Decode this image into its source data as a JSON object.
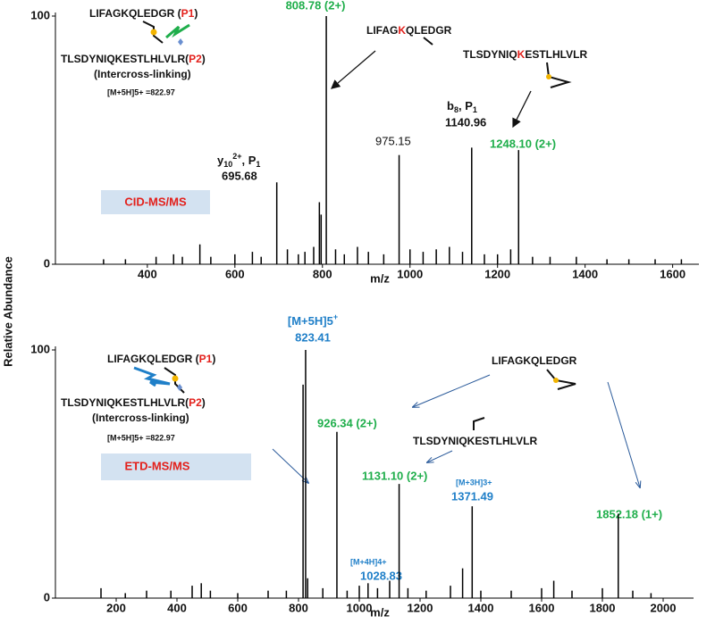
{
  "y_label": "Relative Abundance",
  "chart_data": [
    {
      "type": "spectrum",
      "color": "#000000",
      "xlabel": "m/z",
      "method": "CID-MS/MS",
      "xlim": [
        190,
        1660
      ],
      "xticks": [
        400,
        600,
        800,
        1000,
        1200,
        1400,
        1600
      ],
      "ylim": [
        0,
        100
      ],
      "yticks": [
        0,
        100
      ],
      "x": [
        300,
        350,
        420,
        460,
        480,
        520,
        545,
        600,
        640,
        660,
        695.68,
        720,
        745,
        760,
        780,
        793,
        797,
        808.78,
        830,
        850,
        880,
        905,
        940,
        975.15,
        1000,
        1030,
        1060,
        1090,
        1120,
        1140.96,
        1170,
        1200,
        1230,
        1248.1,
        1280,
        1320,
        1380,
        1450,
        1500,
        1560,
        1620
      ],
      "values": [
        2,
        2,
        3,
        4,
        3,
        8,
        3,
        4,
        5,
        3,
        33,
        6,
        4,
        5,
        7,
        25,
        20,
        100,
        6,
        4,
        7,
        5,
        4,
        44,
        6,
        5,
        6,
        7,
        5,
        47,
        4,
        4,
        6,
        46,
        3,
        3,
        3,
        2,
        2,
        2,
        2
      ],
      "annotations": {
        "seq1": "LIFAGKQLEDGR (",
        "tag1": "P1",
        "end1": ")",
        "seq2": "TLSDYNIQKESTLHLVLR(",
        "tag2": "P2",
        "end2": ")",
        "mode": "(Intercross-linking)",
        "precursor": "[M+5H]5+ =822.97",
        "frag1_a": "LIFAG",
        "frag1_k": "K",
        "frag1_b": "QLEDGR",
        "frag2_a": "TLSDYNIQ",
        "frag2_k": "K",
        "frag2_b": "ESTLHLVLR",
        "b_ion": "b",
        "b_sub": "8",
        "b_p": ", P",
        "b_psub": "1",
        "b_mz": "1140.96",
        "y_ion": "y",
        "y_sub": "10",
        "y_sup": "2+",
        "y_p": ", P",
        "y_psub": "1",
        "y_mz": "695.68",
        "peak975": "975.15",
        "peak808": "808.78 (2+)",
        "peak1248": "1248.10 (2+)"
      }
    },
    {
      "type": "spectrum",
      "color": "#000000",
      "xlabel": "m/z",
      "method": "ETD-MS/MS",
      "xlim": [
        0,
        2100
      ],
      "xticks": [
        200,
        400,
        600,
        800,
        1000,
        1200,
        1400,
        1600,
        1800,
        2000
      ],
      "ylim": [
        0,
        100
      ],
      "yticks": [
        0,
        100
      ],
      "x": [
        150,
        230,
        300,
        380,
        450,
        480,
        510,
        600,
        700,
        760,
        815,
        823.41,
        830,
        880,
        926.34,
        960,
        1000,
        1028.83,
        1060,
        1100,
        1131.1,
        1160,
        1220,
        1300,
        1340,
        1371.49,
        1400,
        1500,
        1600,
        1640,
        1700,
        1800,
        1852.18,
        1900,
        1960
      ],
      "values": [
        4,
        2,
        3,
        3,
        5,
        6,
        3,
        2,
        3,
        3,
        86,
        100,
        8,
        4,
        67,
        3,
        5,
        6,
        4,
        7,
        46,
        4,
        3,
        5,
        12,
        37,
        3,
        3,
        4,
        7,
        3,
        4,
        34,
        3,
        2
      ],
      "annotations": {
        "seq1": "LIFAGKQLEDGR (",
        "tag1": "P1",
        "end1": ")",
        "seq2": "TLSDYNIQKESTLHLVLR(",
        "tag2": "P2",
        "end2": ")",
        "mode": "(Intercross-linking)",
        "precursor": "[M+5H]5+ =822.97",
        "frag1": "LIFAGKQLEDGR",
        "frag2": "TLSDYNIQKESTLHLVLR",
        "ion5": "[M+5H]5",
        "ion5_sup": "+",
        "peak823": "823.41",
        "peak926": "926.34 (2+)",
        "peak1131": "1131.10 (2+)",
        "ion3": "[M+3H]3+",
        "peak1371": "1371.49",
        "ion4": "[M+4H]4+",
        "peak1028": "1028.83",
        "peak1852": "1852.18 (1+)"
      }
    }
  ]
}
